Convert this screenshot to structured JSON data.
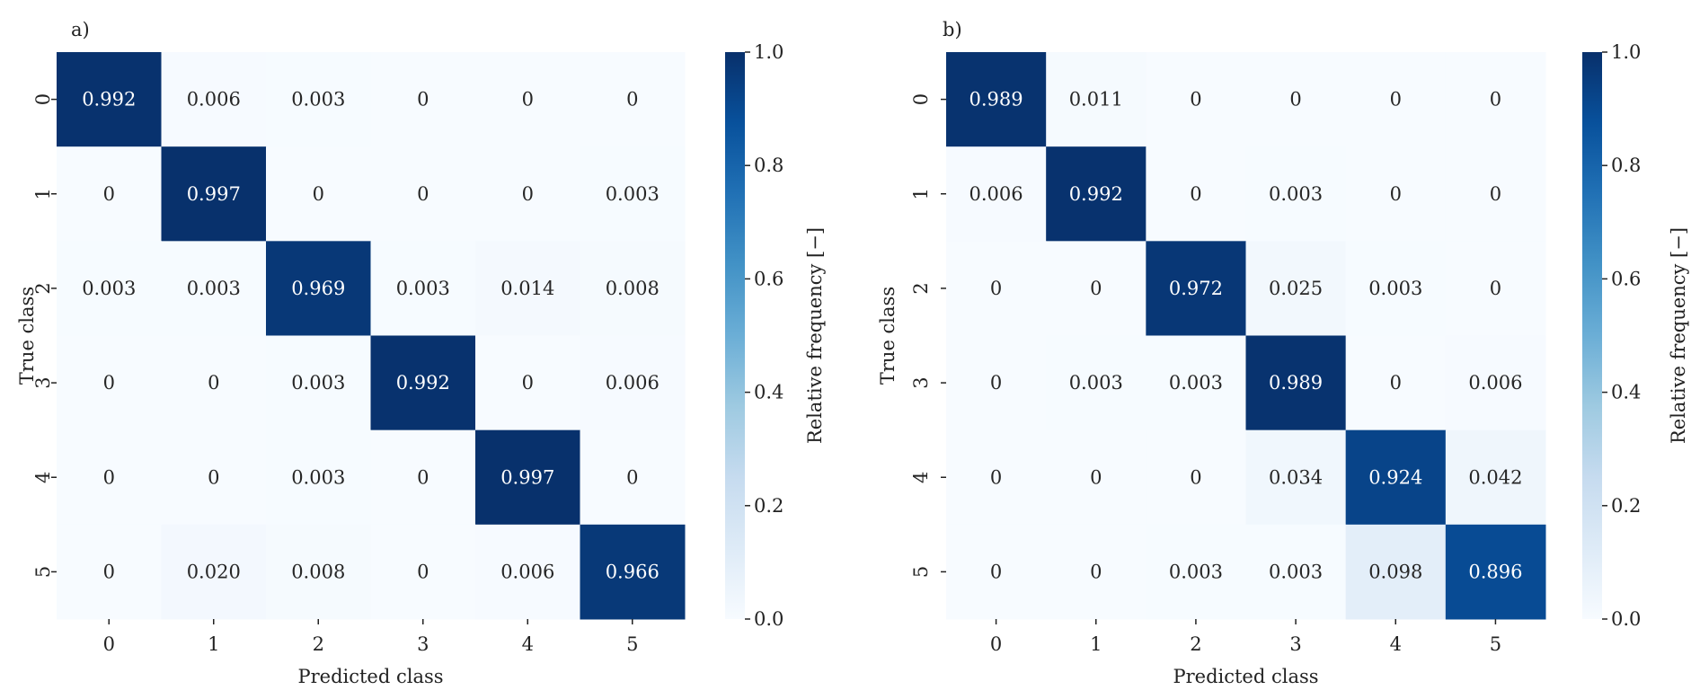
{
  "chart_data": [
    {
      "type": "heatmap",
      "panel_label": "a)",
      "xlabel": "Predicted class",
      "ylabel": "True class",
      "x_categories": [
        "0",
        "1",
        "2",
        "3",
        "4",
        "5"
      ],
      "y_categories": [
        "0",
        "1",
        "2",
        "3",
        "4",
        "5"
      ],
      "values": [
        [
          0.992,
          0.006,
          0.003,
          0,
          0,
          0
        ],
        [
          0,
          0.997,
          0,
          0,
          0,
          0.003
        ],
        [
          0.003,
          0.003,
          0.969,
          0.003,
          0.014,
          0.008
        ],
        [
          0,
          0,
          0.003,
          0.992,
          0,
          0.006
        ],
        [
          0,
          0,
          0.003,
          0,
          0.997,
          0
        ],
        [
          0,
          0.02,
          0.008,
          0,
          0.006,
          0.966
        ]
      ],
      "value_labels": [
        [
          "0.992",
          "0.006",
          "0.003",
          "0",
          "0",
          "0"
        ],
        [
          "0",
          "0.997",
          "0",
          "0",
          "0",
          "0.003"
        ],
        [
          "0.003",
          "0.003",
          "0.969",
          "0.003",
          "0.014",
          "0.008"
        ],
        [
          "0",
          "0",
          "0.003",
          "0.992",
          "0",
          "0.006"
        ],
        [
          "0",
          "0",
          "0.003",
          "0",
          "0.997",
          "0"
        ],
        [
          "0",
          "0.020",
          "0.008",
          "0",
          "0.006",
          "0.966"
        ]
      ],
      "colorbar": {
        "label": "Relative frequency [−]",
        "range": [
          0,
          1
        ],
        "ticks": [
          "0.0",
          "0.2",
          "0.4",
          "0.6",
          "0.8",
          "1.0"
        ],
        "colormap": "Blues"
      }
    },
    {
      "type": "heatmap",
      "panel_label": "b)",
      "xlabel": "Predicted class",
      "ylabel": "True class",
      "x_categories": [
        "0",
        "1",
        "2",
        "3",
        "4",
        "5"
      ],
      "y_categories": [
        "0",
        "1",
        "2",
        "3",
        "4",
        "5"
      ],
      "values": [
        [
          0.989,
          0.011,
          0,
          0,
          0,
          0
        ],
        [
          0.006,
          0.992,
          0,
          0.003,
          0,
          0
        ],
        [
          0,
          0,
          0.972,
          0.025,
          0.003,
          0
        ],
        [
          0,
          0.003,
          0.003,
          0.989,
          0,
          0.006
        ],
        [
          0,
          0,
          0,
          0.034,
          0.924,
          0.042
        ],
        [
          0,
          0,
          0.003,
          0.003,
          0.098,
          0.896
        ]
      ],
      "value_labels": [
        [
          "0.989",
          "0.011",
          "0",
          "0",
          "0",
          "0"
        ],
        [
          "0.006",
          "0.992",
          "0",
          "0.003",
          "0",
          "0"
        ],
        [
          "0",
          "0",
          "0.972",
          "0.025",
          "0.003",
          "0"
        ],
        [
          "0",
          "0.003",
          "0.003",
          "0.989",
          "0",
          "0.006"
        ],
        [
          "0",
          "0",
          "0",
          "0.034",
          "0.924",
          "0.042"
        ],
        [
          "0",
          "0",
          "0.003",
          "0.003",
          "0.098",
          "0.896"
        ]
      ],
      "colorbar": {
        "label": "Relative frequency [−]",
        "range": [
          0,
          1
        ],
        "ticks": [
          "0.0",
          "0.2",
          "0.4",
          "0.6",
          "0.8",
          "1.0"
        ],
        "colormap": "Blues"
      }
    }
  ]
}
